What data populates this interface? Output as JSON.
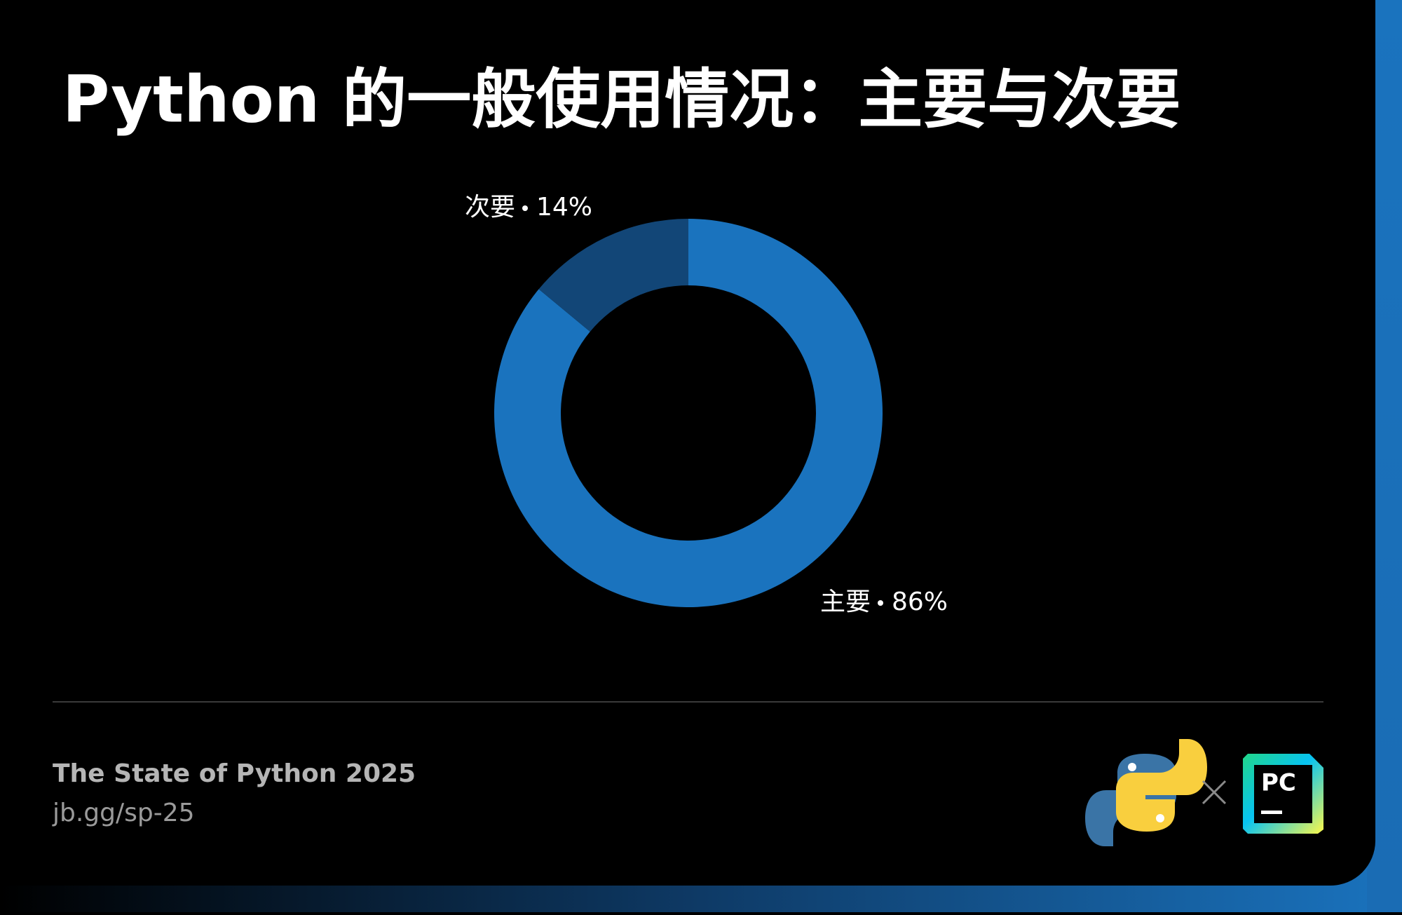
{
  "chart_data": {
    "type": "donut",
    "title": "Python 的一般使用情况：主要与次要",
    "categories": [
      "主要",
      "次要"
    ],
    "values": [
      86,
      14
    ],
    "value_labels": [
      "86%",
      "14%"
    ],
    "colors": [
      "#1a73be",
      "#124677"
    ]
  },
  "footer": {
    "title": "The State of Python 2025",
    "link": "jb.gg/sp-25",
    "logo_text": "PC"
  }
}
